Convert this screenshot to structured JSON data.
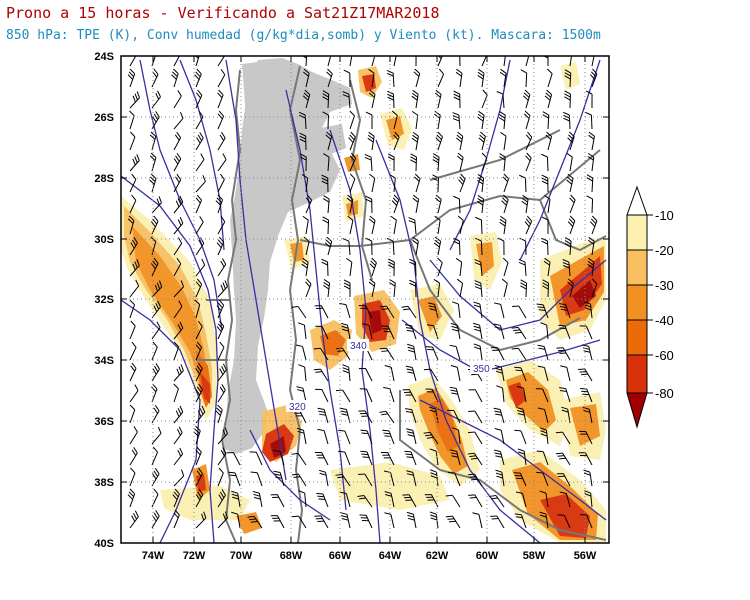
{
  "header": {
    "title": "Prono a 15 horas - Verificando a Sat21Z17MAR2018",
    "subtitle": "850 hPa: TPE (K), Conv humedad (g/kg*dia,somb) y Viento (kt). Mascara: 1500m",
    "title_color": "#b00000",
    "subtitle_color": "#1e8cbe"
  },
  "map": {
    "lat_labels": [
      "24S",
      "26S",
      "28S",
      "30S",
      "32S",
      "34S",
      "36S",
      "38S",
      "40S"
    ],
    "lon_labels": [
      "74W",
      "72W",
      "70W",
      "68W",
      "66W",
      "64W",
      "62W",
      "60W",
      "58W",
      "56W"
    ],
    "contour_labels": [
      "320",
      "340",
      "350"
    ],
    "mask_color": "#c8c8c8",
    "contour_color": "#3a2fa0",
    "border_color": "#777777"
  },
  "colorbar": {
    "labels": [
      "-10",
      "-20",
      "-30",
      "-40",
      "-60",
      "-80"
    ],
    "colors": [
      "#fbf0b0",
      "#f8c060",
      "#f29020",
      "#ec6a08",
      "#d83008",
      "#a00000"
    ]
  }
}
